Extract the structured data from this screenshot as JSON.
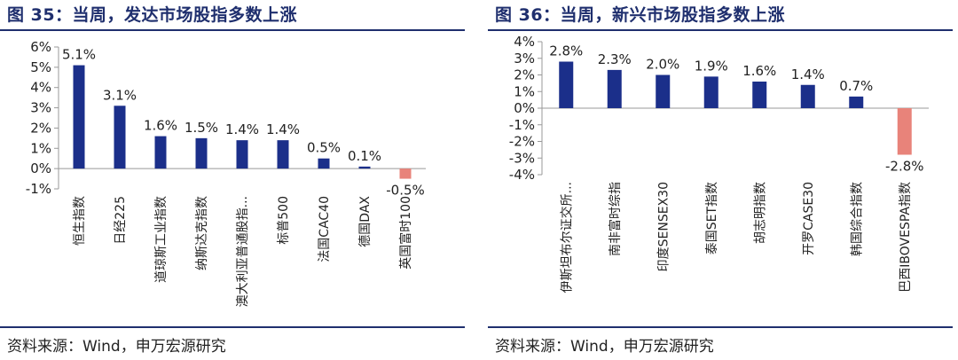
{
  "panels": [
    {
      "title": "图 35：当周，发达市场股指多数上涨",
      "source": "资料来源：Wind，申万宏源研究",
      "chart_data": {
        "type": "bar",
        "categories": [
          "恒生指数",
          "日经225",
          "道琼斯工业指数",
          "纳斯达克指数",
          "澳大利亚普通股指...",
          "标普500",
          "法国CAC40",
          "德国DAX",
          "英国富时100"
        ],
        "values": [
          5.1,
          3.1,
          1.6,
          1.5,
          1.4,
          1.4,
          0.5,
          0.1,
          -0.5
        ],
        "value_labels": [
          "5.1%",
          "3.1%",
          "1.6%",
          "1.5%",
          "1.4%",
          "1.4%",
          "0.5%",
          "0.1%",
          "-0.5%"
        ],
        "y_ticks": [
          6,
          5,
          4,
          3,
          2,
          1,
          0,
          -1
        ],
        "y_tick_labels": [
          "6%",
          "5%",
          "4%",
          "3%",
          "2%",
          "1%",
          "0%",
          "-1%"
        ],
        "ylim": [
          -1,
          6
        ],
        "grid": false,
        "colors": {
          "positive": "#1b2f8a",
          "negative": "#e8837a"
        }
      }
    },
    {
      "title": "图 36：当周，新兴市场股指多数上涨",
      "source": "资料来源：Wind，申万宏源研究",
      "chart_data": {
        "type": "bar",
        "categories": [
          "伊斯坦布尔证交所...",
          "南非富时综指",
          "印度SENSEX30",
          "泰国SET指数",
          "胡志明指数",
          "开罗CASE30",
          "韩国综合指数",
          "巴西IBOVESPA指数"
        ],
        "values": [
          2.8,
          2.3,
          2.0,
          1.9,
          1.6,
          1.4,
          0.7,
          -2.8
        ],
        "value_labels": [
          "2.8%",
          "2.3%",
          "2.0%",
          "1.9%",
          "1.6%",
          "1.4%",
          "0.7%",
          "-2.8%"
        ],
        "y_ticks": [
          4,
          3,
          2,
          1,
          0,
          -1,
          -2,
          -3,
          -4
        ],
        "y_tick_labels": [
          "4%",
          "3%",
          "2%",
          "1%",
          "0%",
          "-1%",
          "-2%",
          "-3%",
          "-4%"
        ],
        "ylim": [
          -4,
          4
        ],
        "grid": false,
        "colors": {
          "positive": "#1b2f8a",
          "negative": "#e8837a"
        }
      }
    }
  ]
}
